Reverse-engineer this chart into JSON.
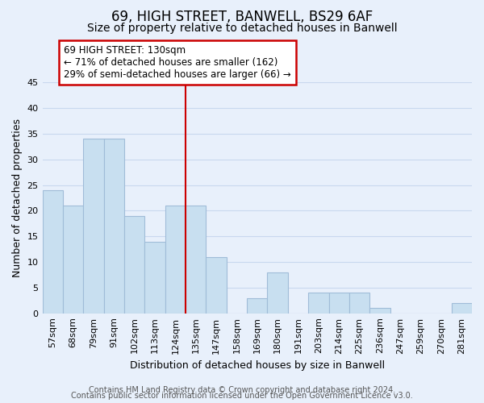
{
  "title": "69, HIGH STREET, BANWELL, BS29 6AF",
  "subtitle": "Size of property relative to detached houses in Banwell",
  "xlabel": "Distribution of detached houses by size in Banwell",
  "ylabel": "Number of detached properties",
  "bar_color": "#c8dff0",
  "bar_edge_color": "#a0bcd8",
  "bin_labels": [
    "57sqm",
    "68sqm",
    "79sqm",
    "91sqm",
    "102sqm",
    "113sqm",
    "124sqm",
    "135sqm",
    "147sqm",
    "158sqm",
    "169sqm",
    "180sqm",
    "191sqm",
    "203sqm",
    "214sqm",
    "225sqm",
    "236sqm",
    "247sqm",
    "259sqm",
    "270sqm",
    "281sqm"
  ],
  "bar_heights": [
    24,
    21,
    34,
    34,
    19,
    14,
    21,
    21,
    11,
    0,
    3,
    8,
    0,
    4,
    4,
    4,
    1,
    0,
    0,
    0,
    2
  ],
  "ylim": [
    0,
    45
  ],
  "yticks": [
    0,
    5,
    10,
    15,
    20,
    25,
    30,
    35,
    40,
    45
  ],
  "property_line_idx": 6.5,
  "annotation_title": "69 HIGH STREET: 130sqm",
  "annotation_line1": "← 71% of detached houses are smaller (162)",
  "annotation_line2": "29% of semi-detached houses are larger (66) →",
  "annotation_box_color": "#ffffff",
  "annotation_box_edge": "#cc0000",
  "property_line_color": "#cc0000",
  "footer1": "Contains HM Land Registry data © Crown copyright and database right 2024.",
  "footer2": "Contains public sector information licensed under the Open Government Licence v3.0.",
  "background_color": "#e8f0fb",
  "grid_color": "#c8d8ee",
  "title_fontsize": 12,
  "subtitle_fontsize": 10,
  "axis_label_fontsize": 9,
  "tick_fontsize": 8,
  "footer_fontsize": 7,
  "annotation_fontsize": 8.5
}
